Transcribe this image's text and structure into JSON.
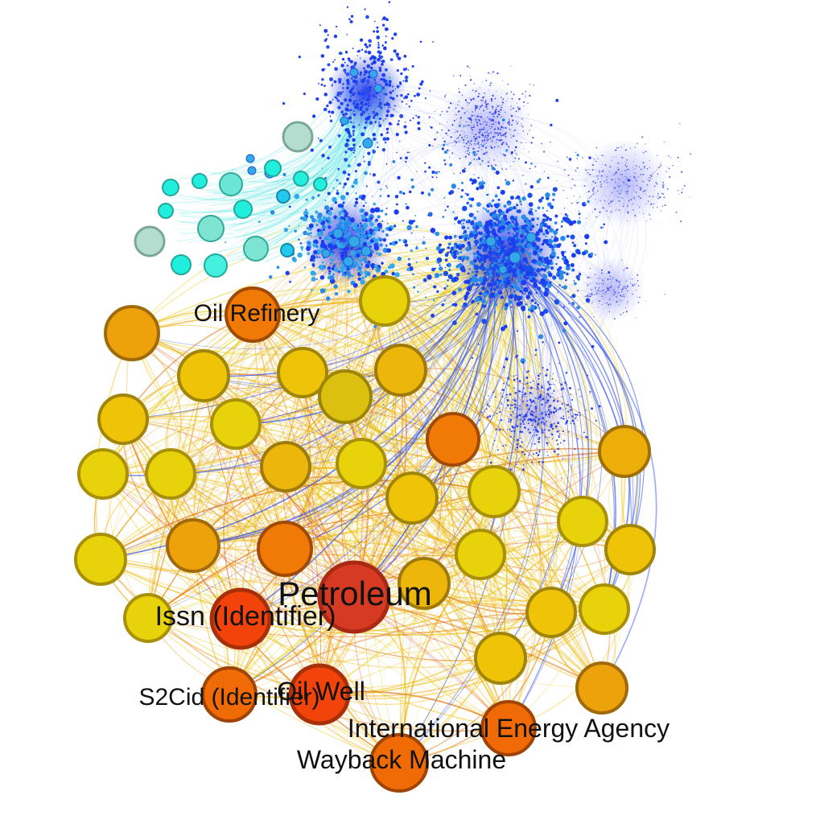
{
  "labels": {
    "petroleum": "Petroleum",
    "oil_refinery": "Oil Refinery",
    "issn": "Issn (Identifier)",
    "s2cid": "S2Cid (Identifier)",
    "oil_well": "Oil Well",
    "iea": "International Energy Agency",
    "wayback": "Wayback Machine"
  },
  "colors": {
    "background": "#ffffff",
    "hub_red": "#d63a22",
    "orange_red": "#f2430a",
    "orange": "#f06a05",
    "amber": "#eda10a",
    "gold": "#eec308",
    "yellow": "#e8d20a",
    "node_stroke_dark": "#9c6e08",
    "cyan": "#19e6da",
    "teal_gray": "#b4ddd0",
    "blue_cluster": "#1c3df0",
    "light_blue": "#35a8ea"
  }
}
